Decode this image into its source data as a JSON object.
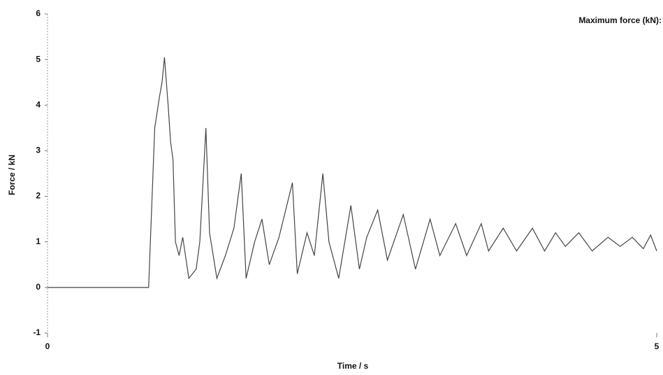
{
  "chart_data": {
    "type": "line",
    "annotation": "Maximum force (kN):",
    "xlabel": "Time / s",
    "ylabel": "Force / kN",
    "x": [
      0,
      0.5,
      0.83,
      0.88,
      0.92,
      0.94,
      0.96,
      0.99,
      1.01,
      1.03,
      1.05,
      1.08,
      1.11,
      1.16,
      1.22,
      1.25,
      1.3,
      1.33,
      1.39,
      1.46,
      1.53,
      1.59,
      1.63,
      1.7,
      1.76,
      1.82,
      1.9,
      2.01,
      2.05,
      2.13,
      2.19,
      2.26,
      2.31,
      2.39,
      2.49,
      2.56,
      2.62,
      2.71,
      2.79,
      2.92,
      3.02,
      3.14,
      3.22,
      3.35,
      3.44,
      3.56,
      3.62,
      3.74,
      3.85,
      3.98,
      4.08,
      4.17,
      4.25,
      4.36,
      4.47,
      4.6,
      4.7,
      4.8,
      4.89,
      4.95,
      5.0
    ],
    "series": [
      {
        "color": "#444444",
        "values": [
          0,
          0,
          0,
          3.5,
          4.2,
          4.5,
          5.05,
          4.0,
          3.2,
          2.8,
          1.0,
          0.7,
          1.1,
          0.2,
          0.4,
          1.0,
          3.5,
          1.2,
          0.2,
          0.7,
          1.3,
          2.5,
          0.2,
          1.0,
          1.5,
          0.5,
          1.1,
          2.3,
          0.3,
          1.2,
          0.7,
          2.5,
          1.0,
          0.2,
          1.8,
          0.4,
          1.1,
          1.7,
          0.6,
          1.6,
          0.4,
          1.5,
          0.7,
          1.4,
          0.7,
          1.4,
          0.8,
          1.3,
          0.8,
          1.3,
          0.8,
          1.2,
          0.9,
          1.2,
          0.8,
          1.1,
          0.9,
          1.1,
          0.85,
          1.15,
          0.8
        ]
      }
    ],
    "xlim": [
      0,
      5
    ],
    "xticks": [
      0,
      5
    ],
    "ylim": [
      -1,
      6
    ],
    "yticks": [
      -1,
      0,
      1,
      2,
      3,
      4,
      5,
      6
    ]
  }
}
